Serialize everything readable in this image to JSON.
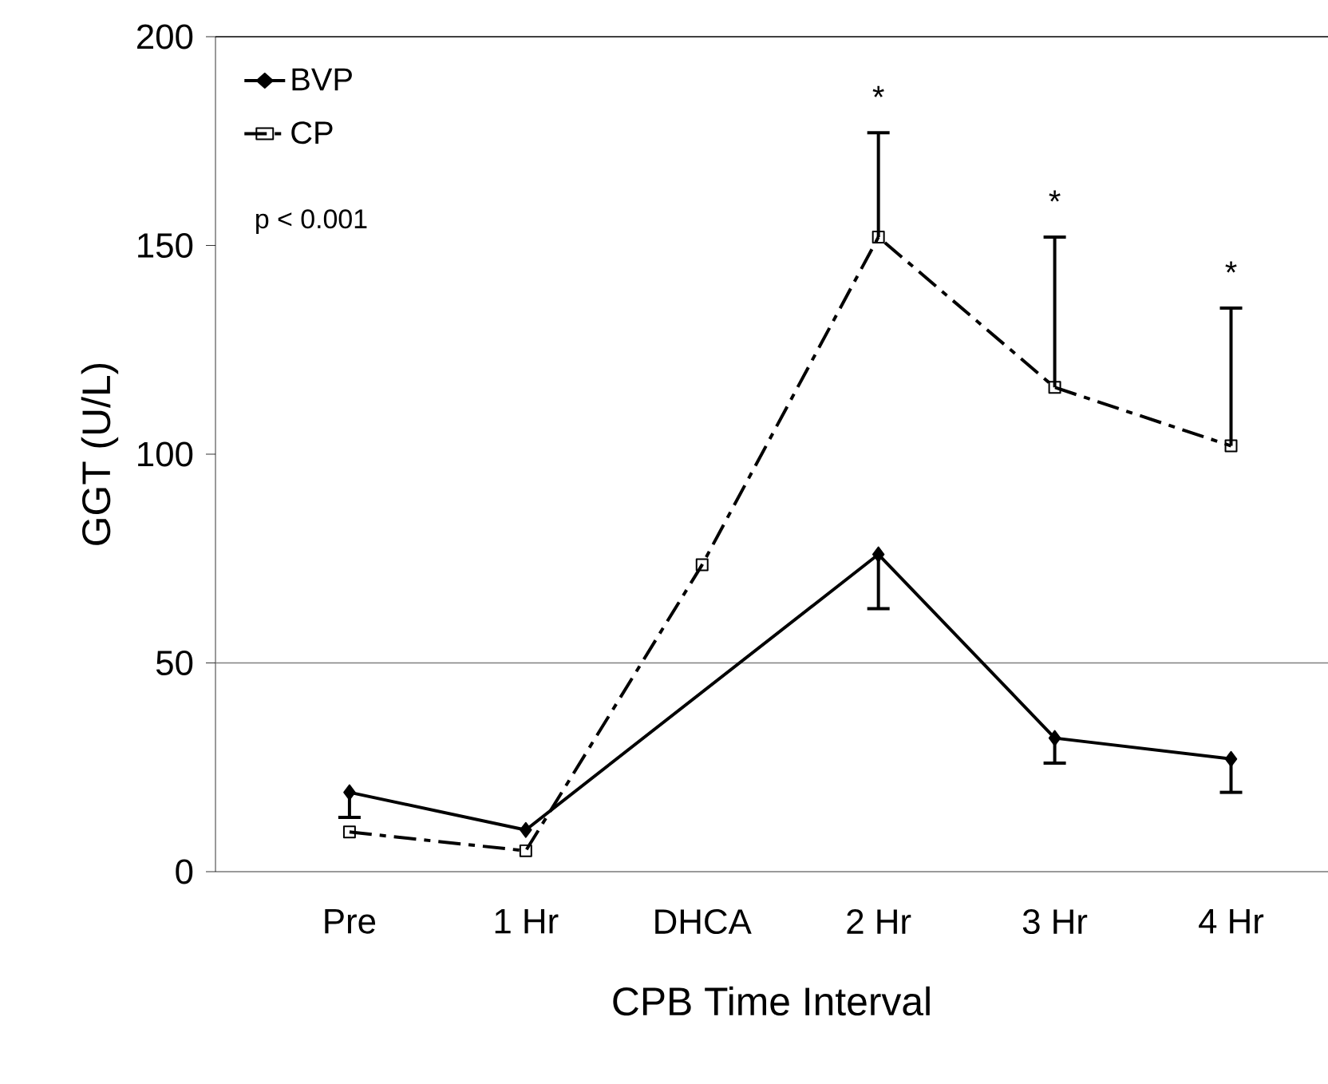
{
  "chart_data": {
    "type": "line",
    "xlabel": "CPB Time Interval",
    "ylabel": "GGT (U/L)",
    "categories": [
      "Pre",
      "1 Hr",
      "DHCA",
      "2 Hr",
      "3 Hr",
      "4 Hr"
    ],
    "series": [
      {
        "name": "BVP",
        "color": "#000000",
        "marker": "diamond",
        "line_style": "solid",
        "values": [
          19,
          10,
          null,
          76,
          32,
          27
        ],
        "errors": [
          [
            13,
            19
          ],
          null,
          null,
          [
            63,
            76
          ],
          [
            26,
            32
          ],
          [
            19,
            27
          ]
        ]
      },
      {
        "name": "CP",
        "color": "#000000",
        "marker": "square",
        "line_style": "dashed",
        "values": [
          9.5,
          5,
          73.5,
          152,
          116,
          102
        ],
        "errors": [
          null,
          null,
          null,
          [
            152,
            177
          ],
          [
            116,
            152
          ],
          [
            102,
            135
          ]
        ]
      }
    ],
    "ylim": [
      0,
      200
    ],
    "yticks": [
      0,
      50,
      100,
      150,
      200
    ],
    "ref_lines": [
      {
        "axis": "y",
        "value": 50,
        "color": "#808080"
      }
    ],
    "legend": "top left",
    "annotations": [
      "p < 0.001",
      "*",
      "*",
      "*"
    ]
  }
}
